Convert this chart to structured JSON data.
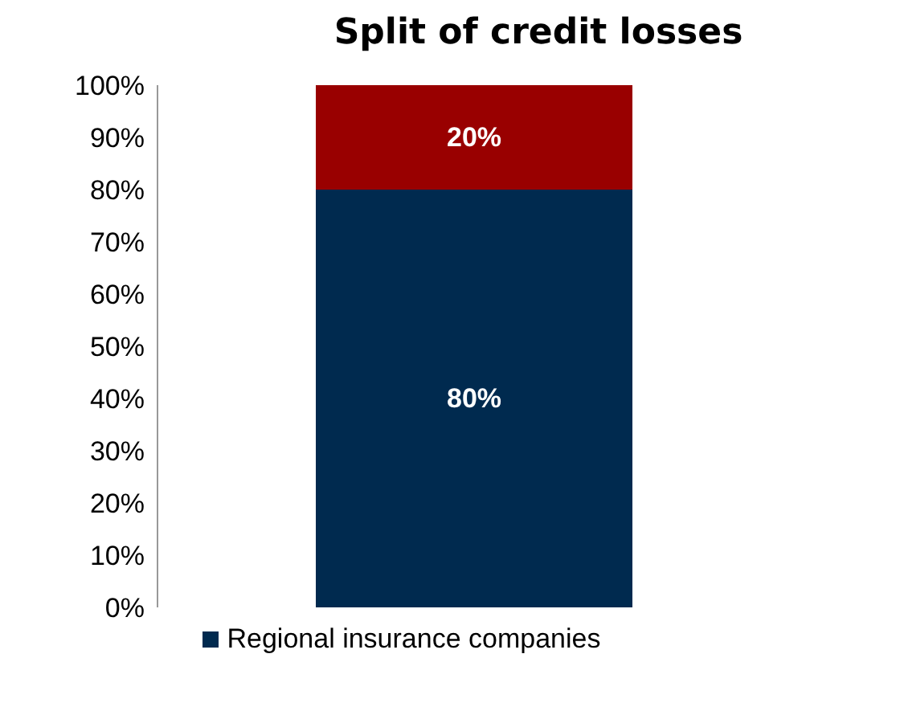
{
  "chart_data": {
    "type": "bar",
    "title": "Split of credit losses",
    "categories": [
      null
    ],
    "stacked": true,
    "series": [
      {
        "name": "Regional insurance companies",
        "color": "#002a4f",
        "values": [
          80
        ],
        "value_labels": [
          "80%"
        ]
      },
      {
        "color": "#990000",
        "values": [
          20
        ],
        "value_labels": [
          "20%"
        ]
      }
    ],
    "ylim": [
      0,
      100
    ],
    "yticks": [
      {
        "value": 0,
        "label": "0%"
      },
      {
        "value": 10,
        "label": "10%"
      },
      {
        "value": 20,
        "label": "20%"
      },
      {
        "value": 30,
        "label": "30%"
      },
      {
        "value": 40,
        "label": "40%"
      },
      {
        "value": 50,
        "label": "50%"
      },
      {
        "value": 60,
        "label": "60%"
      },
      {
        "value": 70,
        "label": "70%"
      },
      {
        "value": 80,
        "label": "80%"
      },
      {
        "value": 90,
        "label": "90%"
      },
      {
        "value": 100,
        "label": "100%"
      }
    ],
    "grid": false,
    "legend": "bottom"
  }
}
